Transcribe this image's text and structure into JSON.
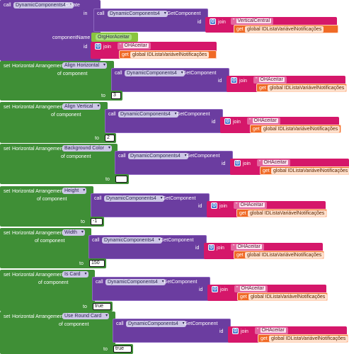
{
  "colors": {
    "purple": "#6b3da0",
    "green": "#3f8f36",
    "magenta": "#d5176a",
    "orange": "#f06a26",
    "lime": "#89c43f"
  },
  "create_block": {
    "call_label": "call",
    "component": "DynamicComponents4",
    "method": ".Create",
    "in_label": "in",
    "inner_call": "call",
    "inner_component": "DynamicComponents4",
    "inner_method": ".GetComponent",
    "id_label": "id",
    "join_label": "join",
    "string_value": "VerticalCentral",
    "get_label": "get",
    "get_var": "global IDListaVariávelNotificações",
    "component_name_label": "componentName",
    "component_name_value": "OrgHorAceitar",
    "id2_label": "id",
    "string2_value": "OHAceitar",
    "get2_var": "global IDListaVariávelNotificações"
  },
  "setters": [
    {
      "set": "set",
      "comp": "Horizontal Arrangement.",
      "prop": "Align Horizontal",
      "of": "of component",
      "call": "call",
      "dc": "DynamicComponents4",
      "gc": ".GetComponent",
      "id": "id",
      "join": "join",
      "str": "OHAceitar",
      "get": "get",
      "var": "global IDListaVariávelNotificações",
      "to": "to",
      "val": "3"
    },
    {
      "set": "set",
      "comp": "Horizontal Arrangement.",
      "prop": "Align Vertical",
      "of": "of component",
      "call": "call",
      "dc": "DynamicComponents4",
      "gc": ".GetComponent",
      "id": "id",
      "join": "join",
      "str": "OHAceitar",
      "get": "get",
      "var": "global IDListaVariávelNotificações",
      "to": "to",
      "val": "2"
    },
    {
      "set": "set",
      "comp": "Horizontal Arrangement.",
      "prop": "Background Color",
      "of": "of component",
      "call": "call",
      "dc": "DynamicComponents4",
      "gc": ".GetComponent",
      "id": "id",
      "join": "join",
      "str": "OHAceitar",
      "get": "get",
      "var": "global IDListaVariávelNotificações",
      "to": "to",
      "val": ""
    },
    {
      "set": "set",
      "comp": "Horizontal Arrangement.",
      "prop": "Height",
      "of": "of component",
      "call": "call",
      "dc": "DynamicComponents4",
      "gc": ".GetComponent",
      "id": "id",
      "join": "join",
      "str": "OHAceitar",
      "get": "get",
      "var": "global IDListaVariávelNotificações",
      "to": "to",
      "val": "-1"
    },
    {
      "set": "set",
      "comp": "Horizontal Arrangement.",
      "prop": "Width",
      "of": "of component",
      "call": "call",
      "dc": "DynamicComponents4",
      "gc": ".GetComponent",
      "id": "id",
      "join": "join",
      "str": "OHAceitar",
      "get": "get",
      "var": "global IDListaVariávelNotificações",
      "to": "to",
      "val": "150"
    },
    {
      "set": "set",
      "comp": "Horizontal Arrangement.",
      "prop": "Is Card",
      "of": "of component",
      "call": "call",
      "dc": "DynamicComponents4",
      "gc": ".GetComponent",
      "id": "id",
      "join": "join",
      "str": "OHAceitar",
      "get": "get",
      "var": "global IDListaVariávelNotificações",
      "to": "to",
      "val": "true"
    },
    {
      "set": "set",
      "comp": "Horizontal Arrangement.",
      "prop": "Use Round Card",
      "of": "of component",
      "call": "call",
      "dc": "DynamicComponents4",
      "gc": ".GetComponent",
      "id": "id",
      "join": "join",
      "str": "OHAceitar",
      "get": "get",
      "var": "global IDListaVariávelNotificações",
      "to": "to",
      "val": "true"
    }
  ]
}
